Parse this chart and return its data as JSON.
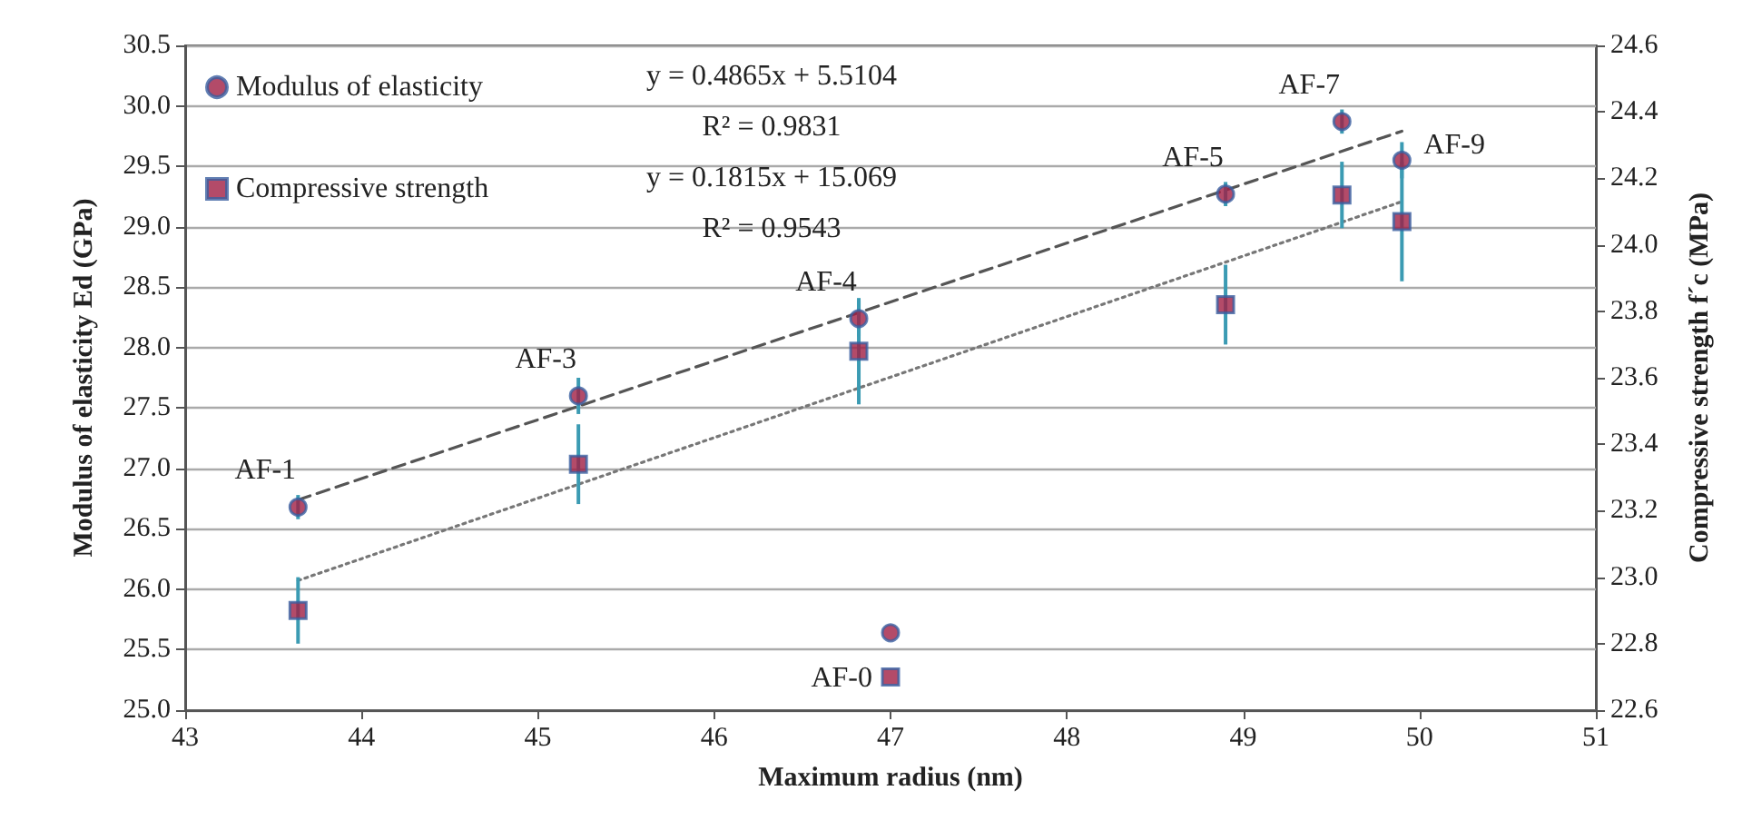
{
  "chart_data": {
    "type": "scatter",
    "xlabel": "Maximum radius (nm)",
    "ylabel": "Modulus of elasticity Ed (GPa)",
    "y2label": "Compressive strength f´c (MPa)",
    "xlim": [
      43,
      51
    ],
    "xticks": [
      43,
      44,
      45,
      46,
      47,
      48,
      49,
      50,
      51
    ],
    "ylim": [
      25,
      30.5
    ],
    "yticks": [
      {
        "value": 25,
        "label": "25.0"
      },
      25.5,
      {
        "value": 26,
        "label": "26.0"
      },
      26.5,
      {
        "value": 27,
        "label": "27.0"
      },
      27.5,
      {
        "value": 28,
        "label": "28.0"
      },
      28.5,
      {
        "value": 29,
        "label": "29.0"
      },
      29.5,
      {
        "value": 30,
        "label": "30.0"
      },
      30.5
    ],
    "y2lim": [
      22.6,
      24.6
    ],
    "y2ticks": [
      22.6,
      22.8,
      {
        "value": 23,
        "label": "23.0"
      },
      23.2,
      23.4,
      23.6,
      23.8,
      {
        "value": 24,
        "label": "24.0"
      },
      24.2,
      24.4,
      24.6
    ],
    "grid": "y",
    "legend": "top left",
    "series": [
      {
        "name": "Modulus of elasticity",
        "marker": "circle",
        "color": "#a01e44",
        "x": [
          43.64,
          45.23,
          46.82,
          47.0,
          48.9,
          49.56,
          49.9
        ],
        "values": [
          26.68,
          27.6,
          28.24,
          25.64,
          29.27,
          29.87,
          29.55
        ],
        "errors": [
          0.1,
          0.15,
          0.15,
          null,
          0.1,
          0.1,
          0.15
        ]
      },
      {
        "name": "Compressive strength",
        "marker": "square",
        "axis": "y2",
        "color": "#a01e44",
        "x": [
          43.64,
          45.23,
          46.82,
          47.0,
          48.9,
          49.56,
          49.9
        ],
        "values": [
          22.9,
          23.34,
          23.68,
          22.7,
          23.82,
          24.15,
          24.07
        ],
        "errors": [
          0.1,
          0.12,
          0.16,
          null,
          0.12,
          0.1,
          0.18
        ]
      },
      {
        "type": "line",
        "marker": "none",
        "line_style": "dashed",
        "color": "#555555",
        "x": [
          43.64,
          49.9
        ],
        "values": [
          26.74,
          29.79
        ]
      },
      {
        "type": "line",
        "marker": "none",
        "line_style": "dotted",
        "axis": "y2",
        "color": "#777777",
        "x": [
          43.64,
          49.9
        ],
        "values": [
          22.99,
          24.13
        ]
      }
    ],
    "annotations": [
      "y = 0.4865x + 5.5104",
      "R² = 0.9831",
      "y = 0.1815x + 15.069",
      "R² = 0.9543",
      {
        "text": "AF-1",
        "x": 43.64,
        "y": 26.68
      },
      {
        "text": "AF-3",
        "x": 45.23,
        "y": 27.6
      },
      {
        "text": "AF-4",
        "x": 46.82,
        "y": 28.24
      },
      {
        "text": "AF-0",
        "x": 47.0,
        "y": 25.64
      },
      {
        "text": "AF-5",
        "x": 48.9,
        "y": 29.27
      },
      {
        "text": "AF-7",
        "x": 49.56,
        "y": 29.87
      },
      {
        "text": "AF-9",
        "x": 49.9,
        "y": 29.55
      }
    ]
  }
}
